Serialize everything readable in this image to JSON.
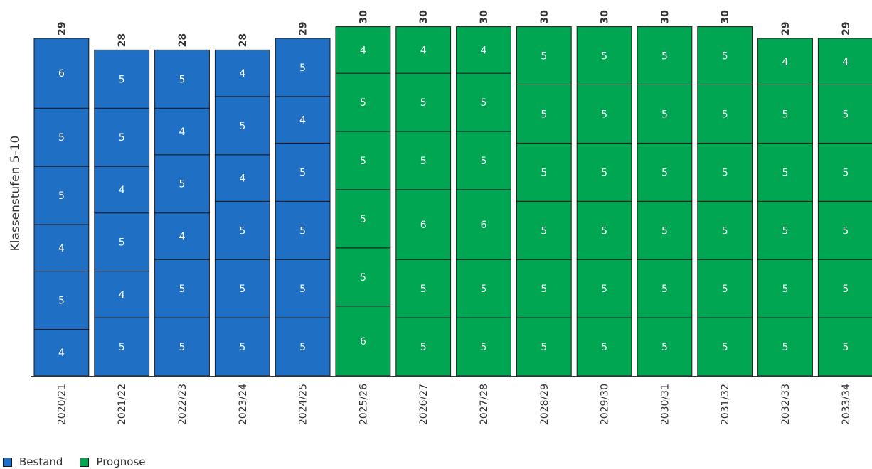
{
  "chart_data": {
    "type": "bar",
    "stacked": true,
    "ylabel": "Klassenstufen 5-10",
    "xlabel": "",
    "ylim": [
      0,
      30
    ],
    "grid": false,
    "legend_position": "bottom-left",
    "categories": [
      "2020/21",
      "2021/22",
      "2022/23",
      "2023/24",
      "2024/25",
      "2025/26",
      "2026/27",
      "2027/28",
      "2028/29",
      "2029/30",
      "2030/31",
      "2031/32",
      "2032/33",
      "2033/34"
    ],
    "category_series": [
      "Bestand",
      "Bestand",
      "Bestand",
      "Bestand",
      "Bestand",
      "Prognose",
      "Prognose",
      "Prognose",
      "Prognose",
      "Prognose",
      "Prognose",
      "Prognose",
      "Prognose",
      "Prognose"
    ],
    "stacks_bottom_to_top": [
      [
        4,
        5,
        4,
        5,
        5,
        6
      ],
      [
        5,
        4,
        5,
        4,
        5,
        5
      ],
      [
        5,
        5,
        4,
        5,
        4,
        5
      ],
      [
        5,
        5,
        5,
        4,
        5,
        4
      ],
      [
        5,
        5,
        5,
        5,
        4,
        5
      ],
      [
        6,
        5,
        5,
        5,
        5,
        4
      ],
      [
        5,
        5,
        6,
        5,
        5,
        4
      ],
      [
        5,
        5,
        6,
        5,
        5,
        4
      ],
      [
        5,
        5,
        5,
        5,
        5,
        5
      ],
      [
        5,
        5,
        5,
        5,
        5,
        5
      ],
      [
        5,
        5,
        5,
        5,
        5,
        5
      ],
      [
        5,
        5,
        5,
        5,
        5,
        5
      ],
      [
        5,
        5,
        5,
        5,
        5,
        4
      ],
      [
        5,
        5,
        5,
        5,
        5,
        4
      ]
    ],
    "totals": [
      29,
      28,
      28,
      28,
      29,
      30,
      30,
      30,
      30,
      30,
      30,
      30,
      29,
      29
    ],
    "series": [
      {
        "name": "Bestand",
        "color": "#1f6fc5"
      },
      {
        "name": "Prognose",
        "color": "#00a651"
      }
    ]
  },
  "legend": {
    "items": [
      {
        "label": "Bestand",
        "color": "#1f6fc5"
      },
      {
        "label": "Prognose",
        "color": "#00a651"
      }
    ]
  }
}
